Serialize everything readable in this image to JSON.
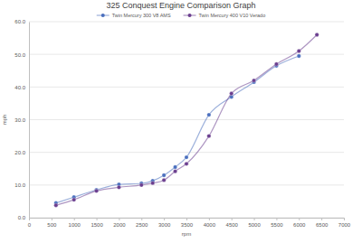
{
  "chart_data": {
    "type": "line",
    "title": "325 Conquest Engine Comparison Graph",
    "x_label": "rpm",
    "y_label": "mph",
    "x": [
      600,
      1000,
      1500,
      2000,
      2500,
      2750,
      3000,
      3250,
      3500,
      4000,
      4500,
      5000,
      5500,
      6000,
      6400
    ],
    "series": [
      {
        "name": "Twin Mercury 300 V8 AMS",
        "color": "#4a6fbe",
        "marker": "circle",
        "values": [
          4.5,
          6.3,
          8.5,
          10.2,
          10.5,
          11.3,
          13.0,
          15.5,
          18.5,
          31.5,
          37.0,
          41.5,
          46.5,
          49.5,
          null
        ]
      },
      {
        "name": "Twin Mercury 400 V10 Verado",
        "color": "#6b3f8f",
        "marker": "circle",
        "values": [
          3.8,
          5.5,
          8.2,
          9.3,
          10.0,
          10.6,
          11.5,
          14.2,
          16.5,
          25.0,
          38.0,
          42.0,
          47.0,
          51.0,
          56.0
        ]
      }
    ],
    "xlim": [
      0,
      7000
    ],
    "xticks": [
      0,
      500,
      1000,
      1500,
      2000,
      2500,
      3000,
      3500,
      4000,
      4500,
      5000,
      5500,
      6000,
      6500,
      7000
    ],
    "ylim": [
      0,
      60
    ],
    "yticks": [
      {
        "value": 0,
        "label": "0.0"
      },
      {
        "value": 10,
        "label": "10.0"
      },
      {
        "value": 20,
        "label": "20.0"
      },
      {
        "value": 30,
        "label": "30.0"
      },
      {
        "value": 40,
        "label": "40.0"
      },
      {
        "value": 50,
        "label": "50.0"
      },
      {
        "value": 60,
        "label": "60.0"
      }
    ],
    "grid": true,
    "legend": "top"
  }
}
